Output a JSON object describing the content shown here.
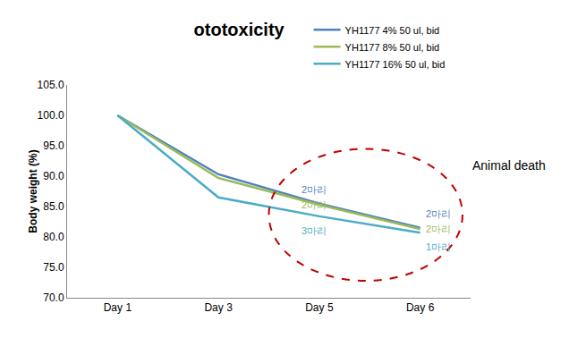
{
  "chart_data": {
    "type": "line",
    "title": "ototoxicity",
    "y_label": "Body weight (%)",
    "categories": [
      "Day 1",
      "Day 3",
      "Day 5",
      "Day 6"
    ],
    "series": [
      {
        "name": "YH1177 4% 50 ul, bid",
        "color": "#4F81BD",
        "values": [
          100.0,
          90.3,
          85.5,
          81.5
        ],
        "point_labels": [
          null,
          null,
          "2마리",
          "2마리"
        ]
      },
      {
        "name": "YH1177 8% 50 ul, bid",
        "color": "#9BBB59",
        "values": [
          100.0,
          89.7,
          85.3,
          81.3
        ],
        "point_labels": [
          null,
          null,
          "2마리",
          "2마리"
        ]
      },
      {
        "name": "YH1177 16% 50 ul, bid",
        "color": "#4BACC6",
        "values": [
          100.0,
          86.5,
          83.4,
          80.7
        ],
        "point_labels": [
          null,
          null,
          "3마리",
          "1마리"
        ]
      }
    ],
    "ylim": [
      70,
      105
    ],
    "yticks": [
      {
        "value": 70,
        "label": "70.0"
      },
      {
        "value": 75,
        "label": "75.0"
      },
      {
        "value": 80,
        "label": "80.0"
      },
      {
        "value": 85,
        "label": "85.0"
      },
      {
        "value": 90,
        "label": "90.0"
      },
      {
        "value": 95,
        "label": "95.0"
      },
      {
        "value": 100,
        "label": "100.0"
      },
      {
        "value": 105,
        "label": "105.0"
      }
    ],
    "annotation": "Animal death",
    "grid": false,
    "legend": "upper right"
  }
}
